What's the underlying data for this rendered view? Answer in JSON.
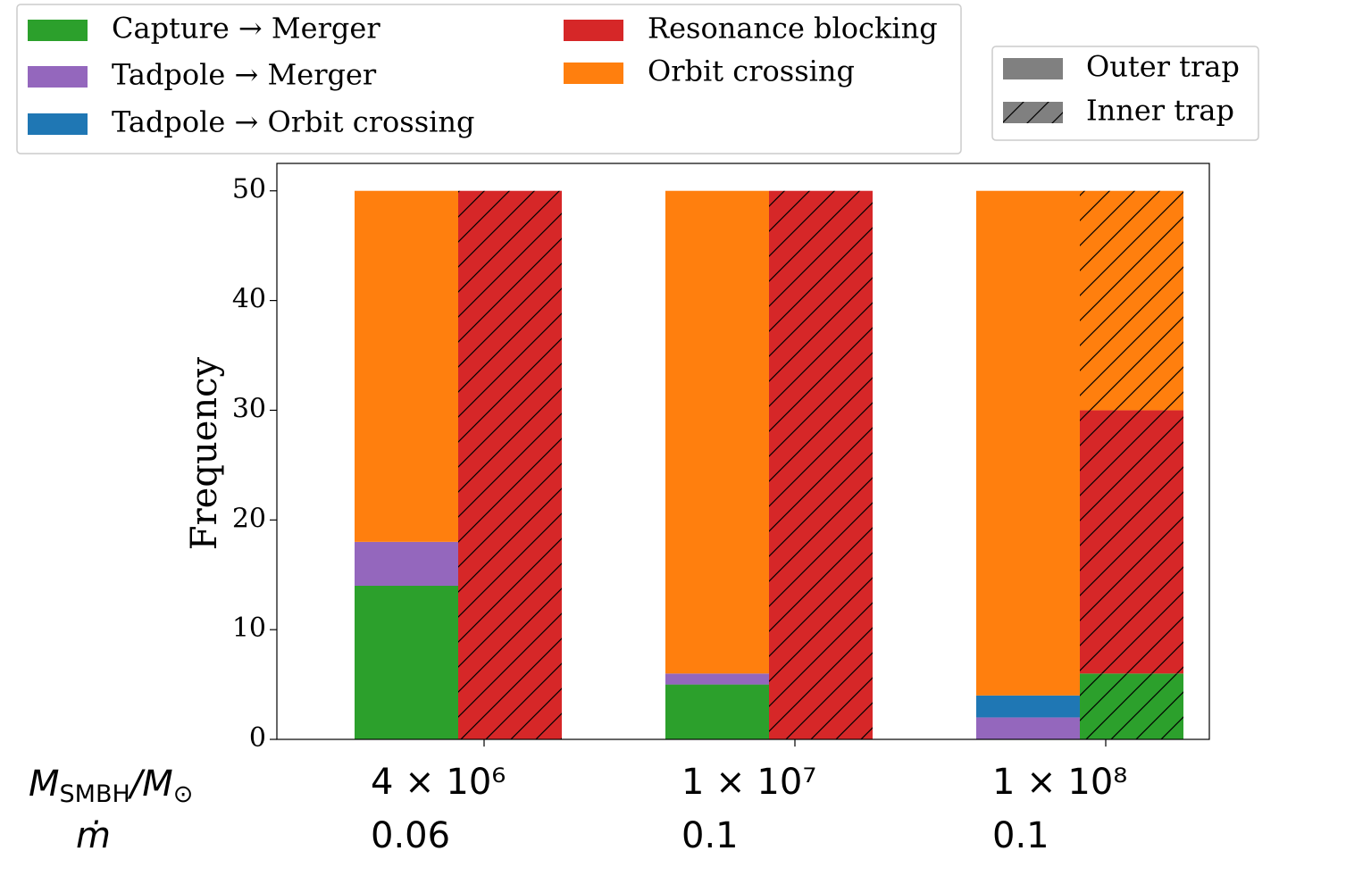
{
  "chart_data": {
    "type": "grouped_stacked_bar",
    "ylabel": "Frequency",
    "categories": [
      "4 × 10⁶",
      "1 × 10⁷",
      "1 × 10⁸"
    ],
    "second_row": [
      "0.06",
      "0.1",
      "0.1"
    ],
    "row_labels": [
      [
        "M",
        "SMBH",
        "/M",
        "⊙"
      ],
      [
        "ṁ"
      ]
    ],
    "groups": [
      {
        "name": "Outer trap",
        "hatch": false
      },
      {
        "name": "Inner trap",
        "hatch": true
      }
    ],
    "series": [
      {
        "name": "Capture → Merger",
        "color": "#2ca02c",
        "values": [
          [
            14,
            0
          ],
          [
            5,
            0
          ],
          [
            0,
            6
          ]
        ]
      },
      {
        "name": "Tadpole → Merger",
        "color": "#9467bd",
        "values": [
          [
            4,
            0
          ],
          [
            1,
            0
          ],
          [
            2,
            0
          ]
        ]
      },
      {
        "name": "Tadpole → Orbit crossing",
        "color": "#1f77b4",
        "values": [
          [
            0,
            0
          ],
          [
            0,
            0
          ],
          [
            2,
            0
          ]
        ]
      },
      {
        "name": "Resonance blocking",
        "color": "#d62728",
        "values": [
          [
            0,
            50
          ],
          [
            0,
            50
          ],
          [
            0,
            24
          ]
        ]
      },
      {
        "name": "Orbit crossing",
        "color": "#ff7f0e",
        "values": [
          [
            32,
            0
          ],
          [
            44,
            0
          ],
          [
            46,
            20
          ]
        ]
      }
    ],
    "ylim": [
      0,
      52.5
    ],
    "yticks": [
      0,
      10,
      20,
      30,
      40,
      50
    ]
  }
}
